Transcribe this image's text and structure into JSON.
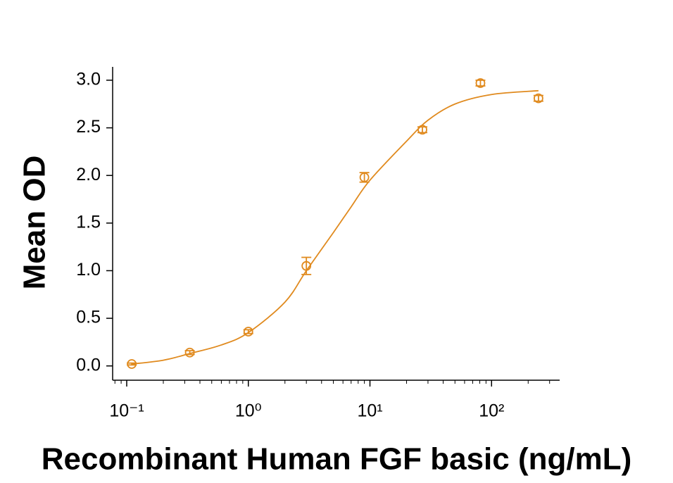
{
  "chart_data": {
    "type": "scatter",
    "x_label": "Recombinant Human FGF basic (ng/mL)",
    "y_label": "Mean OD",
    "x_scale": "log",
    "color": "#e08a1e",
    "x": [
      0.11,
      0.33,
      1,
      3,
      9,
      27,
      81,
      243
    ],
    "values": [
      0.02,
      0.14,
      0.36,
      1.05,
      1.98,
      2.48,
      2.97,
      2.81
    ],
    "errors": [
      0.01,
      0.02,
      0.02,
      0.09,
      0.05,
      0.03,
      0.03,
      0.03
    ],
    "fit": {
      "x": [
        0.11,
        0.2,
        0.33,
        0.6,
        1,
        2,
        3,
        5,
        7,
        10,
        20,
        30,
        50,
        100,
        243
      ],
      "values": [
        0.02,
        0.06,
        0.13,
        0.22,
        0.35,
        0.67,
        1.0,
        1.4,
        1.67,
        1.95,
        2.36,
        2.58,
        2.75,
        2.85,
        2.89
      ]
    },
    "xlim": [
      0.0766,
      363
    ],
    "ylim": [
      -0.15,
      3.14
    ],
    "xticks": [
      {
        "value": 0.1,
        "label": "10⁻¹"
      },
      {
        "value": 1,
        "label": "10⁰"
      },
      {
        "value": 10,
        "label": "10¹"
      },
      {
        "value": 100,
        "label": "10²"
      }
    ],
    "xminorticks": [
      0.08,
      0.09,
      0.2,
      0.3,
      0.4,
      0.5,
      0.6,
      0.7,
      0.8,
      0.9,
      2,
      3,
      4,
      5,
      6,
      7,
      8,
      9,
      20,
      30,
      40,
      50,
      60,
      70,
      80,
      90,
      200,
      300
    ],
    "yticks": [
      {
        "value": 0,
        "label": "0.0"
      },
      0.5,
      {
        "value": 1,
        "label": "1.0"
      },
      1.5,
      {
        "value": 2,
        "label": "2.0"
      },
      2.5,
      {
        "value": 3,
        "label": "3.0"
      }
    ]
  }
}
